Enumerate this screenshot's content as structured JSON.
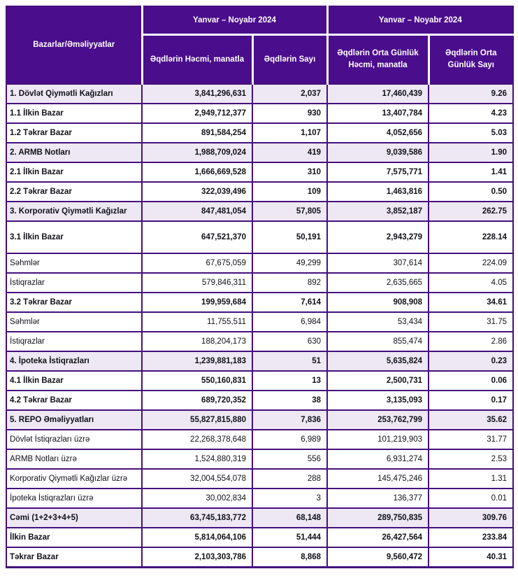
{
  "header": {
    "label_col": "Bazarlar/Əməliyyatlar",
    "group1": "Yanvar – Noyabr 2024",
    "group2": "Yanvar – Noyabr 2024",
    "col_volume": "Əqdlərin Həcmi, manatla",
    "col_count": "Əqdlərin Sayı",
    "col_avg_volume": "Əqdlərin Orta Günlük Həcmi, manatla",
    "col_avg_count": "Əqdlərin Orta Günlük Sayı"
  },
  "colors": {
    "header_bg": "#4A0D8C",
    "border": "#45107C",
    "section_row_bg": "#EDE8F3",
    "body_text": "#101018",
    "header_text": "#FFFFFF"
  },
  "table": {
    "rows": [
      {
        "label": "1. Dövlət Qiymətli Kağızları",
        "values": [
          "3,841,296,631",
          "2,037",
          "17,460,439",
          "9.26"
        ],
        "style": "section"
      },
      {
        "label": "1.1 İlkin Bazar",
        "values": [
          "2,949,712,377",
          "930",
          "13,407,784",
          "4.23"
        ],
        "style": "sub"
      },
      {
        "label": "1.2 Təkrar Bazar",
        "values": [
          "891,584,254",
          "1,107",
          "4,052,656",
          "5.03"
        ],
        "style": "sub"
      },
      {
        "label": "2. ARMB Notları",
        "values": [
          "1,988,709,024",
          "419",
          "9,039,586",
          "1.90"
        ],
        "style": "section"
      },
      {
        "label": "2.1 İlkin Bazar",
        "values": [
          "1,666,669,528",
          "310",
          "7,575,771",
          "1.41"
        ],
        "style": "sub"
      },
      {
        "label": "2.2 Təkrar Bazar",
        "values": [
          "322,039,496",
          "109",
          "1,463,816",
          "0.50"
        ],
        "style": "sub"
      },
      {
        "label": "3. Korporativ Qiymətli Kağızlar",
        "values": [
          "847,481,054",
          "57,805",
          "3,852,187",
          "262.75"
        ],
        "style": "section"
      },
      {
        "label": "3.1 İlkin Bazar",
        "values": [
          "647,521,370",
          "50,191",
          "2,943,279",
          "228.14"
        ],
        "style": "sub tall"
      },
      {
        "label": "Səhmlər",
        "values": [
          "67,675,059",
          "49,299",
          "307,614",
          "224.09"
        ],
        "style": "plain"
      },
      {
        "label": "İstiqrazlar",
        "values": [
          "579,846,311",
          "892",
          "2,635,665",
          "4.05"
        ],
        "style": "plain"
      },
      {
        "label": "3.2 Təkrar Bazar",
        "values": [
          "199,959,684",
          "7,614",
          "908,908",
          "34.61"
        ],
        "style": "sub"
      },
      {
        "label": "Səhmlər",
        "values": [
          "11,755,511",
          "6,984",
          "53,434",
          "31.75"
        ],
        "style": "plain"
      },
      {
        "label": "İstiqrazlar",
        "values": [
          "188,204,173",
          "630",
          "855,474",
          "2.86"
        ],
        "style": "plain"
      },
      {
        "label": "4. İpoteka İstiqrazları",
        "values": [
          "1,239,881,183",
          "51",
          "5,635,824",
          "0.23"
        ],
        "style": "section"
      },
      {
        "label": "4.1 İlkin Bazar",
        "values": [
          "550,160,831",
          "13",
          "2,500,731",
          "0.06"
        ],
        "style": "sub"
      },
      {
        "label": "4.2 Təkrar Bazar",
        "values": [
          "689,720,352",
          "38",
          "3,135,093",
          "0.17"
        ],
        "style": "sub"
      },
      {
        "label": "5. REPO Əməliyyatları",
        "values": [
          "55,827,815,880",
          "7,836",
          "253,762,799",
          "35.62"
        ],
        "style": "section"
      },
      {
        "label": "Dövlət İstiqrazları üzrə",
        "values": [
          "22,268,378,648",
          "6,989",
          "101,219,903",
          "31.77"
        ],
        "style": "plain"
      },
      {
        "label": "ARMB Notları üzrə",
        "values": [
          "1,524,880,319",
          "556",
          "6,931,274",
          "2.53"
        ],
        "style": "plain"
      },
      {
        "label": "Korporativ Qiymətli Kağızlar üzrə",
        "values": [
          "32,004,554,078",
          "288",
          "145,475,246",
          "1.31"
        ],
        "style": "plain"
      },
      {
        "label": "İpoteka İstiqrazları üzrə",
        "values": [
          "30,002,834",
          "3",
          "136,377",
          "0.01"
        ],
        "style": "plain"
      },
      {
        "label": "Cəmi (1+2+3+4+5)",
        "values": [
          "63,745,183,772",
          "68,148",
          "289,750,835",
          "309.76"
        ],
        "style": "section"
      },
      {
        "label": "İlkin Bazar",
        "values": [
          "5,814,064,106",
          "51,444",
          "26,427,564",
          "233.84"
        ],
        "style": "sub"
      },
      {
        "label": "Təkrar Bazar",
        "values": [
          "2,103,303,786",
          "8,868",
          "9,560,472",
          "40.31"
        ],
        "style": "sub"
      }
    ]
  }
}
